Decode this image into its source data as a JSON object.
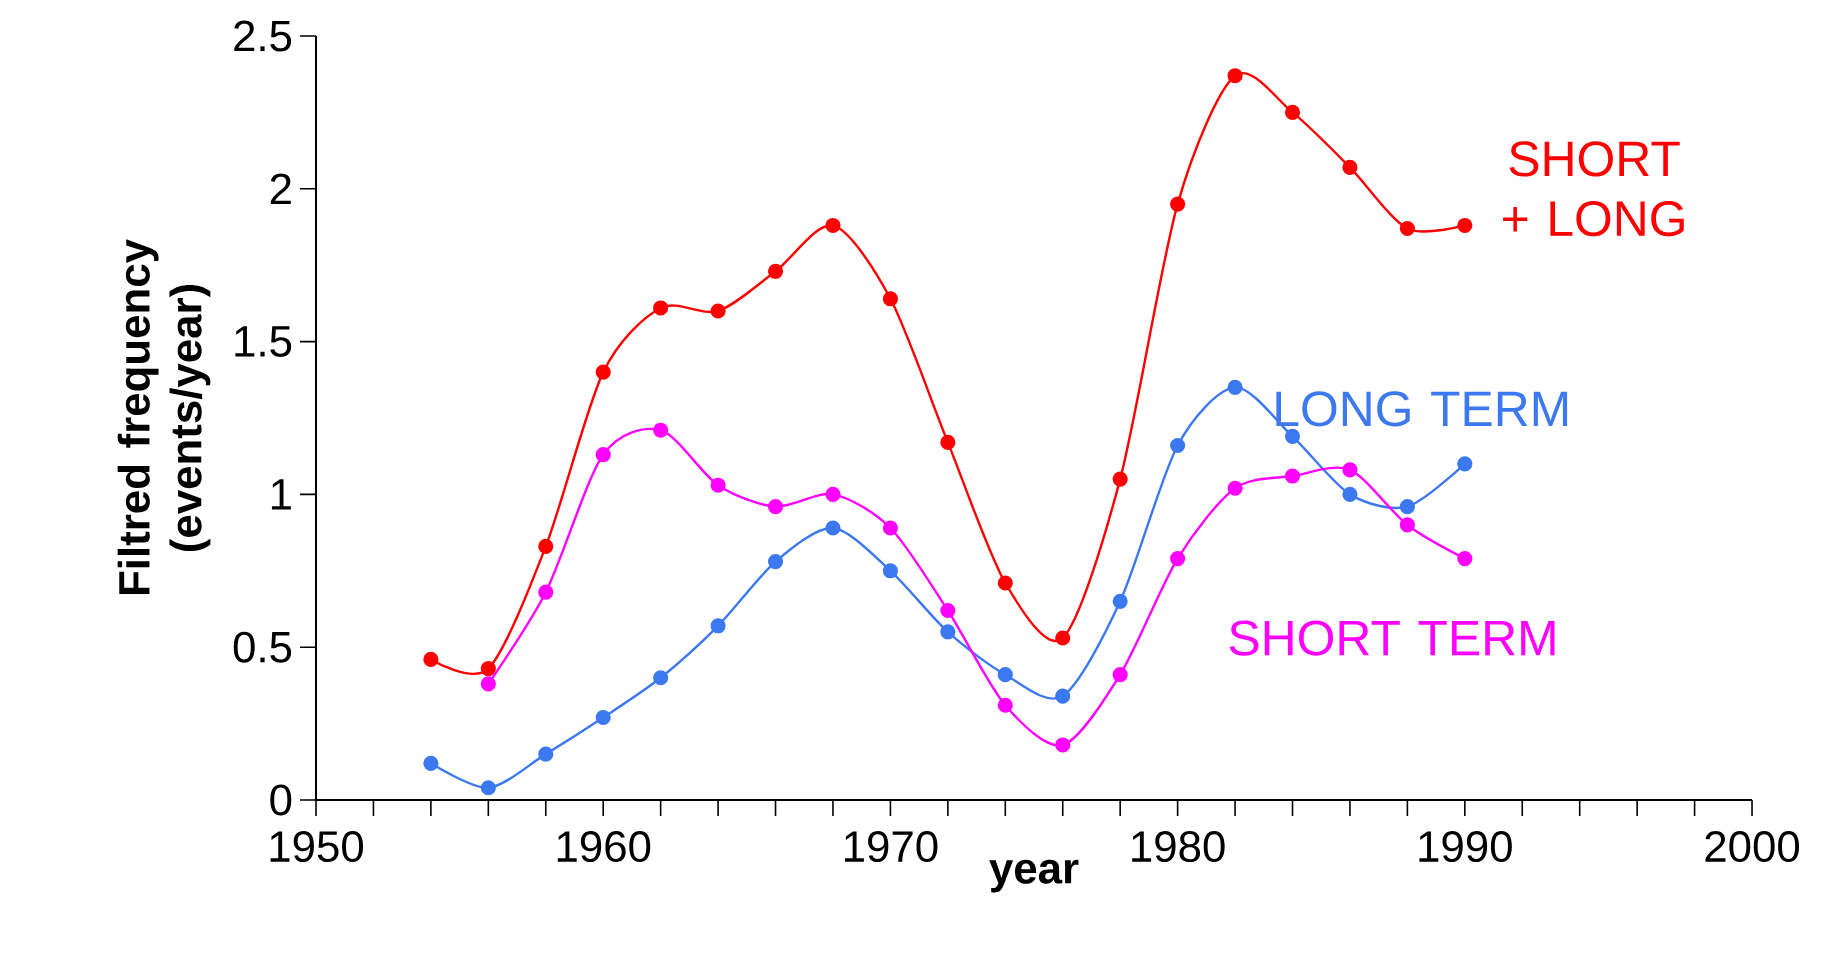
{
  "chart_data": {
    "type": "line",
    "xlabel": "year",
    "ylabel": "Filtred frequency (events/year)",
    "xlim": [
      1950,
      2000
    ],
    "xticks": [
      1950,
      1960,
      1970,
      1980,
      1990,
      2000
    ],
    "ylim": [
      0,
      2.5
    ],
    "yticks": [
      0,
      0.5,
      1,
      1.5,
      2,
      2.5
    ],
    "grid": false,
    "legend": false,
    "marker": "circle",
    "line_style": "solid",
    "series": [
      {
        "name": "SHORT + LONG",
        "color": "#ff0000",
        "x": [
          1954,
          1956,
          1958,
          1960,
          1962,
          1964,
          1966,
          1968,
          1970,
          1972,
          1974,
          1976,
          1978,
          1980,
          1982,
          1984,
          1986,
          1988,
          1990
        ],
        "values": [
          0.46,
          0.43,
          0.83,
          1.4,
          1.61,
          1.6,
          1.73,
          1.88,
          1.64,
          1.17,
          0.71,
          0.53,
          1.05,
          1.95,
          2.37,
          2.25,
          2.07,
          1.87,
          1.88
        ]
      },
      {
        "name": "LONG TERM",
        "color": "#3c78f0",
        "x": [
          1954,
          1956,
          1958,
          1960,
          1962,
          1964,
          1966,
          1968,
          1970,
          1972,
          1974,
          1976,
          1978,
          1980,
          1982,
          1984,
          1986,
          1988,
          1990
        ],
        "values": [
          0.12,
          0.04,
          0.15,
          0.27,
          0.4,
          0.57,
          0.78,
          0.89,
          0.75,
          0.55,
          0.41,
          0.34,
          0.65,
          1.16,
          1.35,
          1.19,
          1.0,
          0.96,
          1.1
        ]
      },
      {
        "name": "SHORT TERM",
        "color": "#ff00ff",
        "x": [
          1956,
          1958,
          1960,
          1962,
          1964,
          1966,
          1968,
          1970,
          1972,
          1974,
          1976,
          1978,
          1980,
          1982,
          1984,
          1986,
          1988,
          1990
        ],
        "values": [
          0.38,
          0.68,
          1.13,
          1.21,
          1.03,
          0.96,
          1.0,
          0.89,
          0.62,
          0.31,
          0.18,
          0.41,
          0.79,
          1.02,
          1.06,
          1.08,
          0.9,
          0.79
        ]
      }
    ]
  }
}
